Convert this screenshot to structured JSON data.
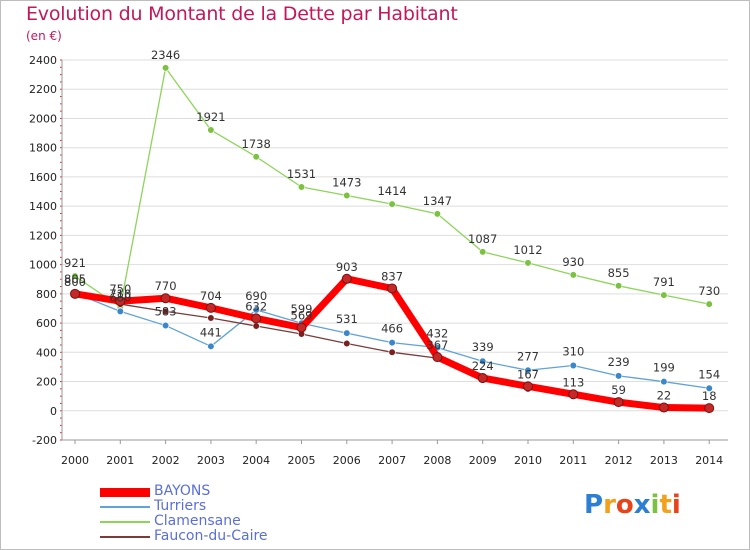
{
  "header": {
    "title": "Evolution du Montant de la Dette par Habitant",
    "unit": "(en €)"
  },
  "logo": {
    "letters": [
      "P",
      "r",
      "o",
      "x",
      "i",
      "t",
      "i"
    ],
    "colors": [
      "#2d7fd3",
      "#f1a11e",
      "#e8441c",
      "#2d7fd3",
      "#7cc242",
      "#f1a11e",
      "#e8441c"
    ]
  },
  "chart_data": {
    "type": "line",
    "x": [
      "2000",
      "2001",
      "2002",
      "2003",
      "2004",
      "2005",
      "2006",
      "2007",
      "2008",
      "2009",
      "2010",
      "2011",
      "2012",
      "2013",
      "2014"
    ],
    "ylim": [
      -200,
      2400
    ],
    "yticks": [
      -200,
      0,
      200,
      400,
      600,
      800,
      1000,
      1200,
      1400,
      1600,
      1800,
      2000,
      2200,
      2400
    ],
    "grid": "horizontal",
    "legend": "bottom-left",
    "series": [
      {
        "name": "BAYONS",
        "color": "#ff0000",
        "marker": "#c62828",
        "values": [
          800,
          750,
          770,
          704,
          632,
          569,
          903,
          837,
          367,
          224,
          167,
          113,
          59,
          22,
          18
        ]
      },
      {
        "name": "Turriers",
        "color": "#5fa3d8",
        "marker": "#3a87c9",
        "values": [
          805,
          680,
          583,
          441,
          690,
          599,
          531,
          466,
          432,
          339,
          277,
          310,
          239,
          199,
          154
        ]
      },
      {
        "name": "Clamensane",
        "color": "#8ed45b",
        "marker": "#7cc242",
        "values": [
          921,
          710,
          2346,
          1921,
          1738,
          1531,
          1473,
          1414,
          1347,
          1087,
          1012,
          930,
          855,
          791,
          730
        ]
      },
      {
        "name": "Faucon-du-Caire",
        "color": "#7a3b3b",
        "marker": "#7a2020",
        "values": [
          805,
          730,
          680,
          635,
          580,
          525,
          460,
          400,
          360,
          210,
          150,
          100,
          60,
          20,
          18
        ]
      }
    ],
    "point_labels": [
      {
        "series": "Clamensane",
        "values": [
          "921",
          "710",
          "2346",
          "1921",
          "1738",
          "1531",
          "1473",
          "1414",
          "1347",
          "1087",
          "1012",
          "930",
          "855",
          "791",
          "730"
        ]
      },
      {
        "series": "BAYONS",
        "values": [
          "800",
          "750",
          "770",
          "704",
          "632",
          "569",
          "903",
          "837",
          "367",
          "224",
          "167",
          "113",
          "59",
          "22",
          "18"
        ]
      },
      {
        "series": "Turriers",
        "values": [
          "805",
          "680",
          "583",
          "441",
          "690",
          "599",
          "531",
          "466",
          "432",
          "339",
          "277",
          "310",
          "239",
          "199",
          "154"
        ]
      }
    ]
  }
}
